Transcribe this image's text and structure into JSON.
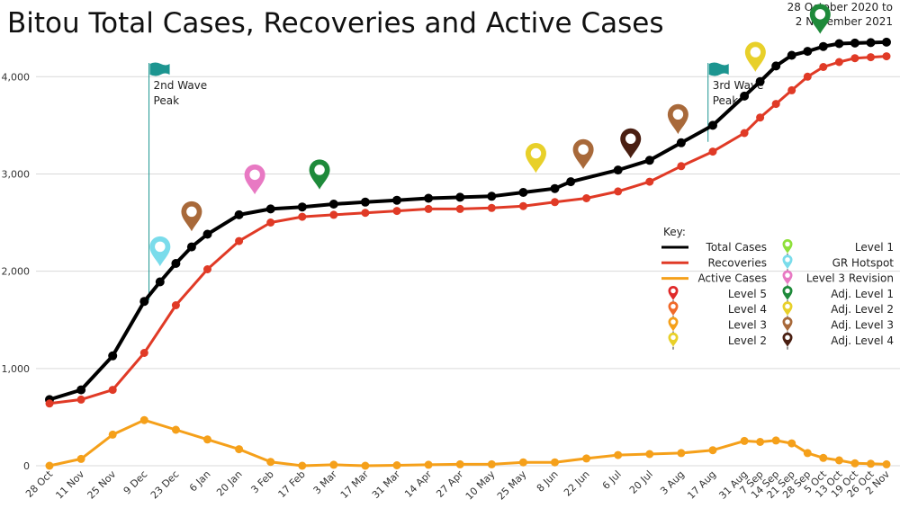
{
  "chart_data": {
    "type": "line",
    "title": "Bitou Total Cases, Recoveries and Active Cases",
    "date_range": [
      "28 October 2020 to",
      "2 November 2021"
    ],
    "xlabel": "",
    "ylabel": "",
    "ylim": [
      0,
      4400
    ],
    "yticks": [
      {
        "value": 0,
        "label": "0"
      },
      {
        "value": 1000,
        "label": "1,000"
      },
      {
        "value": 2000,
        "label": "2,000"
      },
      {
        "value": 3000,
        "label": "3,000"
      },
      {
        "value": 4000,
        "label": "4,000"
      }
    ],
    "grid": true,
    "categories": [
      "28 Oct",
      "11 Nov",
      "25 Nov",
      "9 Dec",
      "23 Dec",
      "6 Jan",
      "20 Jan",
      "3 Feb",
      "17 Feb",
      "3 Mar",
      "17 Mar",
      "31 Mar",
      "14 Apr",
      "27 Apr",
      "10 May",
      "25 May",
      "8 Jun",
      "22 Jun",
      "6 Jul",
      "20 Jul",
      "3 Aug",
      "17 Aug",
      "31 Aug",
      "7 Sep",
      "14 Sep",
      "21 Sep",
      "28 Sep",
      "5 Oct",
      "13 Oct",
      "19 Oct",
      "26 Oct",
      "2 Nov"
    ],
    "tick_positions": [
      0,
      2,
      4,
      6,
      8,
      10,
      12,
      14,
      16,
      18,
      20,
      22,
      24,
      26,
      28,
      30,
      32,
      34,
      36,
      38,
      40,
      42,
      44,
      45,
      46,
      47,
      48,
      49,
      50,
      51,
      52,
      53
    ],
    "series": [
      {
        "name": "Total Cases",
        "color": "#000000",
        "width": 4,
        "points": [
          [
            0,
            680
          ],
          [
            2,
            780
          ],
          [
            4,
            1130
          ],
          [
            6,
            1690
          ],
          [
            7,
            1890
          ],
          [
            8,
            2080
          ],
          [
            9,
            2250
          ],
          [
            10,
            2380
          ],
          [
            12,
            2580
          ],
          [
            14,
            2640
          ],
          [
            16,
            2660
          ],
          [
            18,
            2690
          ],
          [
            20,
            2710
          ],
          [
            22,
            2730
          ],
          [
            24,
            2750
          ],
          [
            26,
            2760
          ],
          [
            28,
            2770
          ],
          [
            30,
            2810
          ],
          [
            32,
            2850
          ],
          [
            33,
            2920
          ],
          [
            36,
            3040
          ],
          [
            38,
            3140
          ],
          [
            40,
            3320
          ],
          [
            42,
            3500
          ],
          [
            44,
            3800
          ],
          [
            45,
            3950
          ],
          [
            46,
            4110
          ],
          [
            47,
            4220
          ],
          [
            48,
            4260
          ],
          [
            49,
            4310
          ],
          [
            50,
            4340
          ],
          [
            51,
            4345
          ],
          [
            52,
            4350
          ],
          [
            53,
            4355
          ]
        ]
      },
      {
        "name": "Recoveries",
        "color": "#E03A26",
        "width": 3,
        "points": [
          [
            0,
            640
          ],
          [
            2,
            680
          ],
          [
            4,
            780
          ],
          [
            6,
            1160
          ],
          [
            8,
            1650
          ],
          [
            10,
            2020
          ],
          [
            12,
            2310
          ],
          [
            14,
            2500
          ],
          [
            16,
            2560
          ],
          [
            18,
            2580
          ],
          [
            20,
            2600
          ],
          [
            22,
            2620
          ],
          [
            24,
            2640
          ],
          [
            26,
            2640
          ],
          [
            28,
            2650
          ],
          [
            30,
            2670
          ],
          [
            32,
            2710
          ],
          [
            34,
            2750
          ],
          [
            36,
            2820
          ],
          [
            38,
            2920
          ],
          [
            40,
            3080
          ],
          [
            42,
            3230
          ],
          [
            44,
            3420
          ],
          [
            45,
            3580
          ],
          [
            46,
            3720
          ],
          [
            47,
            3860
          ],
          [
            48,
            4000
          ],
          [
            49,
            4100
          ],
          [
            50,
            4150
          ],
          [
            51,
            4190
          ],
          [
            52,
            4200
          ],
          [
            53,
            4210
          ]
        ]
      },
      {
        "name": "Active Cases",
        "color": "#F5A01A",
        "width": 3,
        "points": [
          [
            0,
            0
          ],
          [
            2,
            70
          ],
          [
            4,
            320
          ],
          [
            6,
            470
          ],
          [
            8,
            370
          ],
          [
            10,
            270
          ],
          [
            12,
            170
          ],
          [
            14,
            40
          ],
          [
            16,
            0
          ],
          [
            18,
            10
          ],
          [
            20,
            0
          ],
          [
            22,
            5
          ],
          [
            24,
            10
          ],
          [
            26,
            15
          ],
          [
            28,
            15
          ],
          [
            30,
            35
          ],
          [
            32,
            35
          ],
          [
            34,
            75
          ],
          [
            36,
            110
          ],
          [
            38,
            120
          ],
          [
            40,
            130
          ],
          [
            42,
            160
          ],
          [
            44,
            255
          ],
          [
            45,
            245
          ],
          [
            46,
            260
          ],
          [
            47,
            230
          ],
          [
            48,
            130
          ],
          [
            49,
            80
          ],
          [
            50,
            55
          ],
          [
            51,
            25
          ],
          [
            52,
            20
          ],
          [
            53,
            15
          ]
        ]
      }
    ],
    "annotations": [
      {
        "x": 6.3,
        "label_lines": [
          "2nd Wave",
          "Peak"
        ]
      },
      {
        "x": 41.7,
        "label_lines": [
          "3rd Wave",
          "Peak"
        ]
      }
    ],
    "markers": [
      {
        "x": 7.0,
        "value": 2050,
        "color": "#7ADCEB",
        "meaning": "GR Hotspot"
      },
      {
        "x": 9.0,
        "value": 2410,
        "color": "#A8693A",
        "meaning": "Adj. Level 3"
      },
      {
        "x": 13.0,
        "value": 2790,
        "color": "#E879C3",
        "meaning": "Level 3 Revision"
      },
      {
        "x": 17.1,
        "value": 2840,
        "color": "#1E8A3A",
        "meaning": "Adj. Level 1"
      },
      {
        "x": 30.8,
        "value": 3010,
        "color": "#E8D02A",
        "meaning": "Adj. Level 2"
      },
      {
        "x": 33.8,
        "value": 3050,
        "color": "#A8693A",
        "meaning": "Adj. Level 3"
      },
      {
        "x": 36.8,
        "value": 3160,
        "color": "#4A1F12",
        "meaning": "Adj. Level 4"
      },
      {
        "x": 39.8,
        "value": 3410,
        "color": "#A8693A",
        "meaning": "Adj. Level 3"
      },
      {
        "x": 44.7,
        "value": 4050,
        "color": "#E8D02A",
        "meaning": "Adj. Level 2"
      },
      {
        "x": 48.8,
        "value": 4440,
        "color": "#1E8A3A",
        "meaning": "Adj. Level 1"
      }
    ],
    "legend": {
      "title": "Key:",
      "placement": "right",
      "left_column": [
        {
          "label": "Total Cases",
          "kind": "line",
          "color": "#000000"
        },
        {
          "label": "Recoveries",
          "kind": "line",
          "color": "#E03A26"
        },
        {
          "label": "Active Cases",
          "kind": "line",
          "color": "#F5A01A"
        },
        {
          "label": "Level 5",
          "kind": "pin",
          "color": "#E02A2A"
        },
        {
          "label": "Level 4",
          "kind": "pin",
          "color": "#F06A2A"
        },
        {
          "label": "Level 3",
          "kind": "pin",
          "color": "#F5A01A"
        },
        {
          "label": "Level 2",
          "kind": "pin",
          "color": "#E8D02A"
        }
      ],
      "right_column": [
        {
          "label": "Level 1",
          "kind": "pin",
          "color": "#8EE03A"
        },
        {
          "label": "GR Hotspot",
          "kind": "pin",
          "color": "#7ADCEB"
        },
        {
          "label": "Level 3 Revision",
          "kind": "pin",
          "color": "#E879C3"
        },
        {
          "label": "Adj. Level 1",
          "kind": "pin",
          "color": "#1E8A3A"
        },
        {
          "label": "Adj. Level 2",
          "kind": "pin",
          "color": "#E8D02A"
        },
        {
          "label": "Adj. Level 3",
          "kind": "pin",
          "color": "#A8693A"
        },
        {
          "label": "Adj. Level 4",
          "kind": "pin",
          "color": "#4A1F12"
        }
      ]
    },
    "colors": {
      "wave_flag": "#1C9590",
      "grid": "#d9d9d9"
    }
  }
}
